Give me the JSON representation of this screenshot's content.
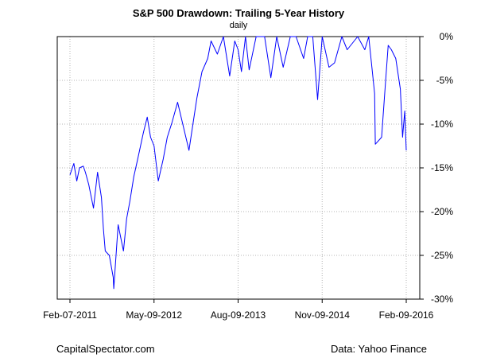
{
  "chart_data": {
    "type": "line",
    "title": "S&P 500 Drawdown: Trailing 5-Year History",
    "subtitle": "daily",
    "xlabel": "",
    "ylabel": "",
    "y_ticks": [
      "0%",
      "-5%",
      "-10%",
      "-15%",
      "-20%",
      "-25%",
      "-30%"
    ],
    "x_ticks": [
      "Feb-07-2011",
      "May-09-2012",
      "Aug-09-2013",
      "Nov-09-2014",
      "Feb-09-2016"
    ],
    "xlim": [
      "2011-02-07",
      "2016-02-09"
    ],
    "ylim": [
      -30,
      0
    ],
    "grid": true,
    "series": [
      {
        "color": "#0000ff",
        "x": [
          "2011-02-07",
          "2011-02-28",
          "2011-03-16",
          "2011-03-31",
          "2011-04-20",
          "2011-05-02",
          "2011-05-20",
          "2011-06-15",
          "2011-07-07",
          "2011-07-28",
          "2011-08-08",
          "2011-08-18",
          "2011-09-09",
          "2011-09-30",
          "2011-10-03",
          "2011-10-27",
          "2011-11-25",
          "2011-12-12",
          "2011-12-30",
          "2012-01-20",
          "2012-02-10",
          "2012-03-12",
          "2012-04-02",
          "2012-04-20",
          "2012-05-09",
          "2012-06-01",
          "2012-06-28",
          "2012-07-20",
          "2012-08-15",
          "2012-09-14",
          "2012-10-18",
          "2012-11-15",
          "2012-12-10",
          "2012-12-28",
          "2013-01-25",
          "2013-02-25",
          "2013-03-15",
          "2013-04-18",
          "2013-05-21",
          "2013-06-24",
          "2013-07-22",
          "2013-08-09",
          "2013-08-27",
          "2013-09-18",
          "2013-10-08",
          "2013-11-15",
          "2013-12-31",
          "2014-02-03",
          "2014-03-07",
          "2014-04-11",
          "2014-05-20",
          "2014-06-20",
          "2014-07-31",
          "2014-08-22",
          "2014-09-19",
          "2014-10-15",
          "2014-11-09",
          "2014-12-16",
          "2015-01-15",
          "2015-02-24",
          "2015-03-25",
          "2015-05-21",
          "2015-06-29",
          "2015-07-20",
          "2015-08-21",
          "2015-08-25",
          "2015-09-28",
          "2015-10-20",
          "2015-11-03",
          "2015-11-20",
          "2015-12-14",
          "2016-01-08",
          "2016-01-20",
          "2016-02-01",
          "2016-02-09"
        ],
        "values": [
          -15.8,
          -14.5,
          -16.5,
          -15.0,
          -14.8,
          -15.5,
          -16.9,
          -19.6,
          -15.5,
          -18.4,
          -22.0,
          -24.5,
          -25.0,
          -27.5,
          -28.8,
          -21.5,
          -24.5,
          -20.8,
          -18.8,
          -16.0,
          -14.0,
          -11.0,
          -9.2,
          -11.5,
          -12.5,
          -16.5,
          -14.0,
          -11.5,
          -9.8,
          -7.5,
          -10.5,
          -13.0,
          -9.5,
          -7.0,
          -4.0,
          -2.5,
          -0.5,
          -2.0,
          0.0,
          -4.5,
          -0.5,
          -1.5,
          -4.0,
          0.0,
          -3.8,
          0.0,
          0.0,
          -4.7,
          0.0,
          -3.5,
          0.0,
          0.0,
          -2.5,
          0.0,
          0.0,
          -7.2,
          0.0,
          -3.5,
          -3.0,
          0.0,
          -1.5,
          0.0,
          -1.5,
          0.0,
          -6.5,
          -12.3,
          -11.5,
          -5.0,
          -1.0,
          -1.5,
          -2.5,
          -6.0,
          -11.5,
          -8.5,
          -13.0
        ]
      }
    ]
  },
  "credits": {
    "left": "CapitalSpectator.com",
    "right": "Data: Yahoo Finance"
  }
}
